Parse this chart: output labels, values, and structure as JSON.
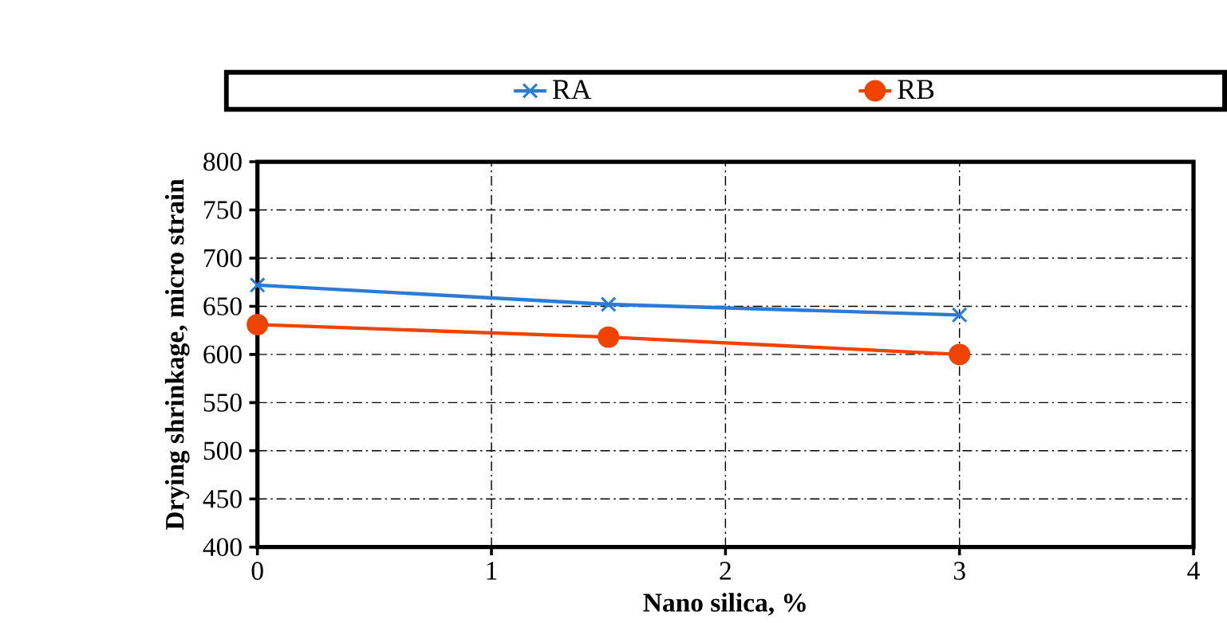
{
  "chart_data": {
    "type": "line",
    "xlabel": "Nano silica, %",
    "ylabel": "Drying shrinkage, micro strain",
    "x": [
      0,
      1.5,
      3
    ],
    "series": [
      {
        "name": "RA",
        "color": "#2b7bd6",
        "marker": "cross",
        "values": [
          672,
          652,
          641
        ]
      },
      {
        "name": "RB",
        "color": "#f04300",
        "marker": "circle",
        "values": [
          631,
          618,
          600
        ]
      }
    ],
    "xlim": [
      0,
      4
    ],
    "xticks": [
      0,
      1,
      2,
      3,
      4
    ],
    "ylim": [
      400,
      800
    ],
    "yticks": [
      400,
      450,
      500,
      550,
      600,
      650,
      700,
      750,
      800
    ],
    "grid": true,
    "legend": "top",
    "line_style": "solid"
  }
}
